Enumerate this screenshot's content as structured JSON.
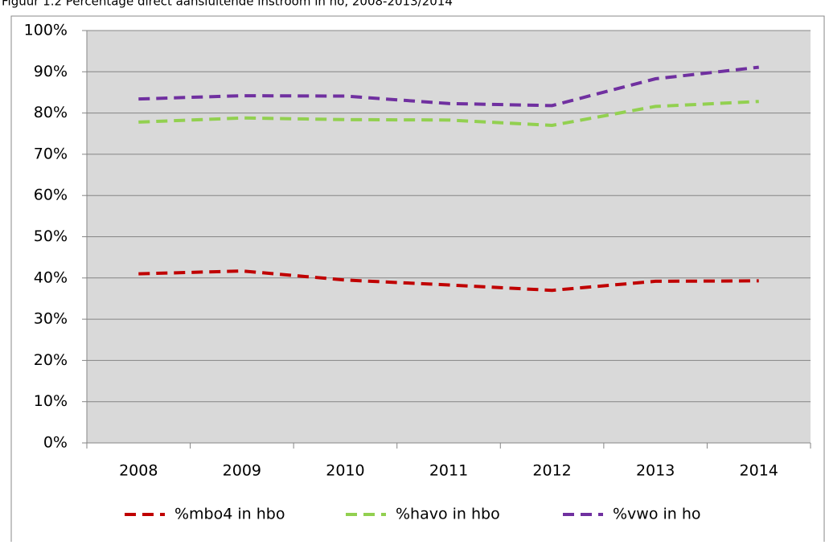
{
  "chart_data": {
    "type": "line",
    "title": "Figuur 1.2 Percentage direct aansluitende instroom in ho, 2008-2013/2014",
    "categories": [
      "2008",
      "2009",
      "2010",
      "2011",
      "2012",
      "2013",
      "2014"
    ],
    "series": [
      {
        "name": "%mbo4 in hbo",
        "color": "#c00000",
        "values": [
          41.0,
          41.7,
          39.5,
          38.3,
          37.0,
          39.2,
          39.3
        ]
      },
      {
        "name": "%havo in hbo",
        "color": "#92d050",
        "values": [
          77.8,
          78.8,
          78.4,
          78.3,
          77.0,
          81.6,
          82.8
        ]
      },
      {
        "name": "%vwo in ho",
        "color": "#7030a0",
        "values": [
          83.4,
          84.2,
          84.1,
          82.3,
          81.8,
          88.3,
          91.1
        ]
      }
    ],
    "ylim": [
      0,
      100
    ],
    "yticks": [
      {
        "value": 0,
        "label": "0%"
      },
      {
        "value": 10,
        "label": "10%"
      },
      {
        "value": 20,
        "label": "20%"
      },
      {
        "value": 30,
        "label": "30%"
      },
      {
        "value": 40,
        "label": "40%"
      },
      {
        "value": 50,
        "label": "50%"
      },
      {
        "value": 60,
        "label": "60%"
      },
      {
        "value": 70,
        "label": "70%"
      },
      {
        "value": 80,
        "label": "80%"
      },
      {
        "value": 90,
        "label": "90%"
      },
      {
        "value": 100,
        "label": "100%"
      }
    ],
    "grid": true,
    "legend": "bottom",
    "plot_background": "#d9d9d9"
  }
}
